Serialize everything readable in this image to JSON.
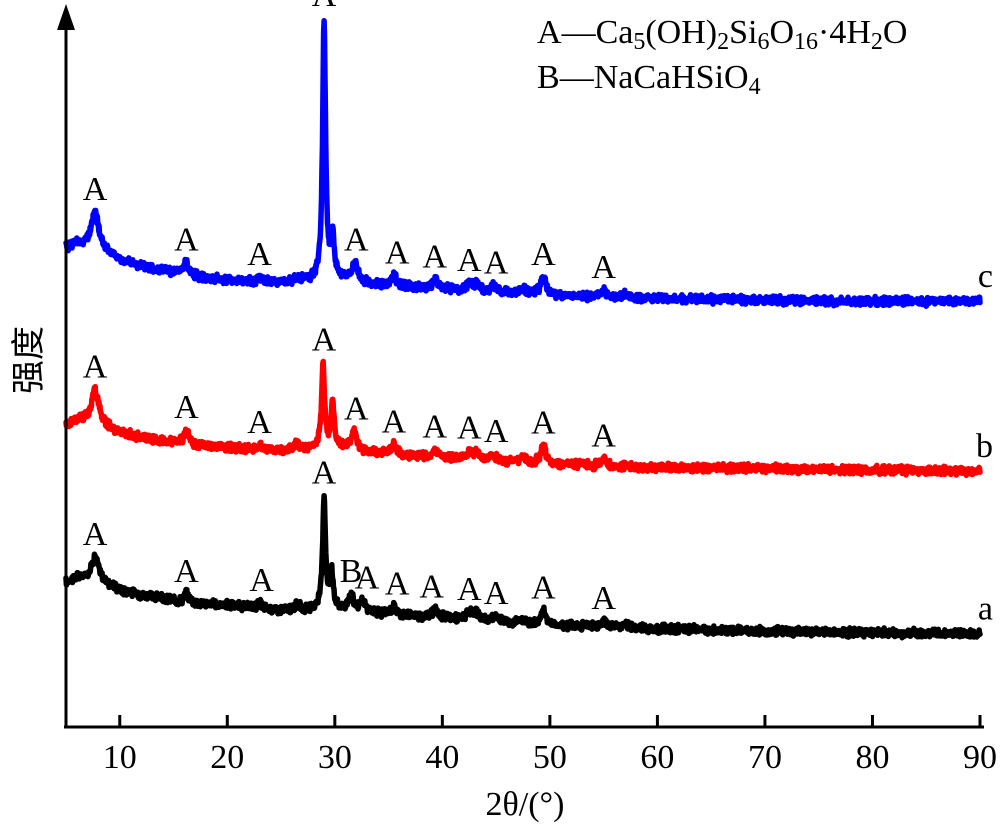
{
  "chart_data": {
    "type": "line",
    "xlabel": "2θ/(°)",
    "ylabel": "强度",
    "xlim": [
      5,
      90
    ],
    "x_ticks": [
      "10",
      "20",
      "30",
      "40",
      "50",
      "60",
      "70",
      "80",
      "90"
    ],
    "grid": false,
    "legend": [
      {
        "marker": "A",
        "text": "—Ca5(OH)2Si6O16·4H2O"
      },
      {
        "marker": "B",
        "text": "—NaCaHSiO4"
      }
    ],
    "series": [
      {
        "name": "a",
        "color": "#000000",
        "base": [
          [
            5,
            62
          ],
          [
            6,
            66
          ],
          [
            8,
            64
          ],
          [
            10,
            56
          ],
          [
            12,
            52
          ],
          [
            14,
            49
          ],
          [
            16,
            46
          ],
          [
            20,
            44
          ],
          [
            22,
            42
          ],
          [
            25,
            40
          ],
          [
            28,
            40
          ],
          [
            29,
            42
          ],
          [
            31,
            40
          ],
          [
            33,
            38
          ],
          [
            36,
            36
          ],
          [
            40,
            34
          ],
          [
            45,
            31
          ],
          [
            48,
            29
          ],
          [
            50,
            28
          ],
          [
            55,
            27
          ],
          [
            60,
            25
          ],
          [
            70,
            23
          ],
          [
            80,
            22
          ],
          [
            90,
            21
          ]
        ],
        "peaks": [
          [
            7.7,
            18
          ],
          [
            16.2,
            7
          ],
          [
            23,
            4
          ],
          [
            26.5,
            4
          ],
          [
            29.0,
            88
          ],
          [
            29.7,
            30
          ],
          [
            31.5,
            12
          ],
          [
            32.6,
            8
          ],
          [
            35.5,
            6
          ],
          [
            39.3,
            6
          ],
          [
            42.5,
            5
          ],
          [
            43.2,
            5
          ],
          [
            45,
            4
          ],
          [
            47.5,
            3
          ],
          [
            49.4,
            11
          ],
          [
            55,
            4
          ],
          [
            57,
            2
          ]
        ],
        "peak_labels": [
          {
            "text": "A",
            "x": 7.7
          },
          {
            "text": "A",
            "x": 16.2
          },
          {
            "text": "A",
            "x": 23.2
          },
          {
            "text": "A",
            "x": 29.0
          },
          {
            "text": "B",
            "x": 31.5
          },
          {
            "text": "A",
            "x": 33.0
          },
          {
            "text": "A",
            "x": 35.8
          },
          {
            "text": "A",
            "x": 39.0
          },
          {
            "text": "A",
            "x": 42.5
          },
          {
            "text": "A",
            "x": 45.0
          },
          {
            "text": "A",
            "x": 49.4
          },
          {
            "text": "A",
            "x": 55.0
          }
        ]
      },
      {
        "name": "b",
        "color": "#ff0000",
        "base": [
          [
            5,
            48
          ],
          [
            6,
            52
          ],
          [
            8,
            50
          ],
          [
            10,
            42
          ],
          [
            12,
            38
          ],
          [
            14,
            35
          ],
          [
            16,
            32
          ],
          [
            20,
            30
          ],
          [
            23,
            28
          ],
          [
            26,
            28
          ],
          [
            28,
            29
          ],
          [
            29,
            32
          ],
          [
            31,
            30
          ],
          [
            33,
            26
          ],
          [
            36,
            24
          ],
          [
            40,
            22
          ],
          [
            45,
            19
          ],
          [
            48,
            18
          ],
          [
            50,
            17
          ],
          [
            55,
            15
          ],
          [
            60,
            14
          ],
          [
            70,
            13
          ],
          [
            80,
            12
          ],
          [
            90,
            11
          ]
        ],
        "peaks": [
          [
            7.7,
            26
          ],
          [
            16.2,
            12
          ],
          [
            23,
            4
          ],
          [
            26.5,
            5
          ],
          [
            28.9,
            65
          ],
          [
            29.8,
            35
          ],
          [
            31.8,
            14
          ],
          [
            35.5,
            8
          ],
          [
            39.3,
            6
          ],
          [
            42.5,
            5
          ],
          [
            43.2,
            7
          ],
          [
            44.7,
            5
          ],
          [
            47.5,
            4
          ],
          [
            49.4,
            14
          ],
          [
            55,
            6
          ]
        ],
        "peak_labels": [
          {
            "text": "A",
            "x": 7.7
          },
          {
            "text": "A",
            "x": 16.2
          },
          {
            "text": "A",
            "x": 23.0
          },
          {
            "text": "A",
            "x": 29.0
          },
          {
            "text": "A",
            "x": 32.0
          },
          {
            "text": "A",
            "x": 35.5
          },
          {
            "text": "A",
            "x": 39.3
          },
          {
            "text": "A",
            "x": 42.5
          },
          {
            "text": "A",
            "x": 45.0
          },
          {
            "text": "A",
            "x": 49.4
          },
          {
            "text": "A",
            "x": 55.0
          }
        ]
      },
      {
        "name": "c",
        "color": "#0000ff",
        "base": [
          [
            5,
            50
          ],
          [
            6,
            53
          ],
          [
            8,
            50
          ],
          [
            10,
            40
          ],
          [
            12,
            35
          ],
          [
            14,
            32
          ],
          [
            16,
            28
          ],
          [
            20,
            24
          ],
          [
            23,
            22
          ],
          [
            26,
            22
          ],
          [
            28,
            24
          ],
          [
            29,
            27
          ],
          [
            31,
            25
          ],
          [
            33,
            21
          ],
          [
            36,
            19
          ],
          [
            40,
            17
          ],
          [
            45,
            14
          ],
          [
            48,
            13
          ],
          [
            50,
            12
          ],
          [
            55,
            10
          ],
          [
            60,
            9
          ],
          [
            70,
            8
          ],
          [
            80,
            7
          ],
          [
            90,
            7
          ]
        ],
        "peaks": [
          [
            7.7,
            28
          ],
          [
            16.2,
            10
          ],
          [
            23,
            4
          ],
          [
            26.5,
            4
          ],
          [
            29.0,
            205
          ],
          [
            29.8,
            35
          ],
          [
            31.9,
            14
          ],
          [
            35.5,
            8
          ],
          [
            39.3,
            7
          ],
          [
            42.5,
            5
          ],
          [
            43.2,
            6
          ],
          [
            44.8,
            5
          ],
          [
            47.5,
            4
          ],
          [
            49.4,
            14
          ],
          [
            55,
            6
          ],
          [
            57,
            3
          ]
        ],
        "peak_labels": [
          {
            "text": "A",
            "x": 7.7
          },
          {
            "text": "A",
            "x": 16.2
          },
          {
            "text": "A",
            "x": 23.0
          },
          {
            "text": "A",
            "x": 29.0
          },
          {
            "text": "A",
            "x": 32.0
          },
          {
            "text": "A",
            "x": 35.8
          },
          {
            "text": "A",
            "x": 39.3
          },
          {
            "text": "A",
            "x": 42.5
          },
          {
            "text": "A",
            "x": 45.0
          },
          {
            "text": "A",
            "x": 49.4
          },
          {
            "text": "A",
            "x": 55.0
          }
        ]
      }
    ]
  }
}
